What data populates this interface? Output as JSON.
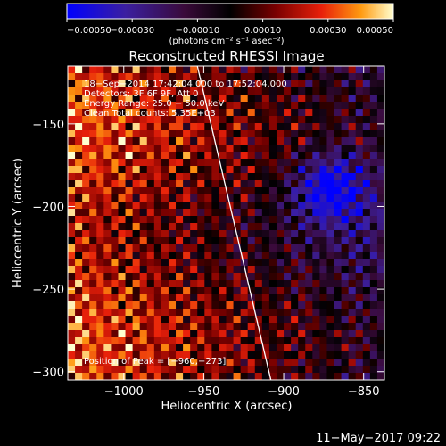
{
  "chart_data": {
    "type": "heatmap",
    "title": "Reconstructed RHESSI Image",
    "xlabel": "Heliocentric X (arcsec)",
    "ylabel": "Heliocentric Y (arcsec)",
    "xlim": [
      -1035,
      -837
    ],
    "ylim": [
      -305,
      -115
    ],
    "x_ticks": [
      -1000,
      -950,
      -900,
      -850
    ],
    "x_tick_labels": [
      "−1000",
      "−950",
      "−900",
      "−850"
    ],
    "y_ticks": [
      -150,
      -200,
      -250,
      -300
    ],
    "y_tick_labels": [
      "−150",
      "−200",
      "−250",
      "−300"
    ],
    "colorbar": {
      "min": -0.0005,
      "max": 0.0005,
      "ticks": [
        -0.0005,
        -0.0003,
        -0.0001,
        0.0001,
        0.0003,
        0.0005
      ],
      "tick_labels": [
        "−0.00050",
        "−0.00030",
        "−0.00010",
        "0.00010",
        "0.00030",
        "0.00050"
      ],
      "unit_label": "(photons cm⁻² s⁻¹ asec⁻²)",
      "colors": [
        "#0000ff",
        "#3b1fa0",
        "#3a0a3a",
        "#000000",
        "#7a0000",
        "#e8200a",
        "#ff9a10",
        "#ffffd0"
      ]
    },
    "annotations": [
      "18−Sep−2014 17:42:04.000 to 17:52:04.000",
      "Detectors: 3F 6F 9F, Att 0",
      "Energy Range: 25.0 − 50.0 keV",
      "Clean     Total counts: 5.35E+03"
    ],
    "peak_label": "Position of Peak = [−960,−273]",
    "peak": [
      -960,
      -273
    ],
    "limb_line": [
      [
        -954,
        -115
      ],
      [
        -908,
        -305
      ]
    ],
    "grid": false
  },
  "footer": {
    "timestamp": "11−May−2017 09:22"
  }
}
